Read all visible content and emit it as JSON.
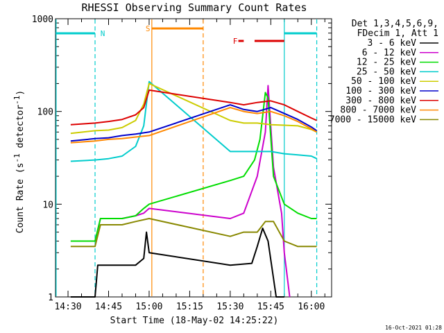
{
  "chart_data": {
    "type": "line",
    "title": "RHESSI Observing Summary Count Rates",
    "xlabel": "Start Time (18-May-02 14:25:22)",
    "ylabel_main": "Count Rate (s",
    "ylabel_sup1": "-1",
    "ylabel_mid": " detector",
    "ylabel_sup2": "-1",
    "ylabel_end": ")",
    "yscale": "log",
    "ylim": [
      1,
      1000
    ],
    "xlim_minutes": [
      25.37,
      127.5
    ],
    "x_tick_labels": [
      "14:30",
      "14:45",
      "15:00",
      "15:15",
      "15:30",
      "15:45",
      "16:00"
    ],
    "x_tick_minutes": [
      30,
      45,
      60,
      75,
      90,
      105,
      120
    ],
    "y_tick_labels": [
      "1",
      "10",
      "100",
      "1000"
    ],
    "y_tick_values": [
      1,
      10,
      100,
      1000
    ],
    "legend_header": [
      "Det 1,3,4,5,6,9,",
      "FDecim 1, Att 1"
    ],
    "series": [
      {
        "name": "3 - 6 keV",
        "color": "#000000",
        "points": [
          [
            31,
            1
          ],
          [
            40,
            1
          ],
          [
            41,
            2.2
          ],
          [
            55,
            2.2
          ],
          [
            58,
            2.6
          ],
          [
            59,
            5
          ],
          [
            60,
            3
          ],
          [
            90,
            2.2
          ],
          [
            98,
            2.3
          ],
          [
            100,
            3.5
          ],
          [
            102,
            5.5
          ],
          [
            104,
            4
          ],
          [
            107,
            1
          ],
          [
            110,
            1
          ]
        ]
      },
      {
        "name": "6 - 12 keV",
        "color": "#cc00cc",
        "points": [
          [
            31,
            4
          ],
          [
            40,
            4
          ],
          [
            42,
            7
          ],
          [
            50,
            7
          ],
          [
            55,
            7.5
          ],
          [
            58,
            8
          ],
          [
            60,
            9
          ],
          [
            90,
            7
          ],
          [
            95,
            8
          ],
          [
            100,
            20
          ],
          [
            103,
            60
          ],
          [
            104,
            190
          ],
          [
            106,
            25
          ],
          [
            109,
            8
          ],
          [
            110,
            3
          ],
          [
            112,
            1
          ]
        ]
      },
      {
        "name": "12 - 25 keV",
        "color": "#00dd00",
        "points": [
          [
            31,
            4
          ],
          [
            40,
            4
          ],
          [
            42,
            7
          ],
          [
            50,
            7
          ],
          [
            55,
            7.5
          ],
          [
            58,
            9
          ],
          [
            60,
            10
          ],
          [
            90,
            18
          ],
          [
            95,
            20
          ],
          [
            99,
            30
          ],
          [
            101,
            50
          ],
          [
            103,
            160
          ],
          [
            104,
            140
          ],
          [
            106,
            20
          ],
          [
            110,
            10
          ],
          [
            115,
            8
          ],
          [
            120,
            7
          ],
          [
            122,
            7
          ]
        ]
      },
      {
        "name": "25 - 50 keV",
        "color": "#00cccc",
        "points": [
          [
            31,
            29
          ],
          [
            40,
            30
          ],
          [
            45,
            31
          ],
          [
            50,
            33
          ],
          [
            55,
            42
          ],
          [
            58,
            70
          ],
          [
            60,
            210
          ],
          [
            90,
            37
          ],
          [
            100,
            37
          ],
          [
            105,
            37
          ],
          [
            110,
            35
          ],
          [
            115,
            34
          ],
          [
            120,
            33
          ],
          [
            122,
            31
          ]
        ]
      },
      {
        "name": "50 - 100 keV",
        "color": "#cccc00",
        "points": [
          [
            31,
            58
          ],
          [
            40,
            62
          ],
          [
            45,
            63
          ],
          [
            50,
            67
          ],
          [
            55,
            80
          ],
          [
            58,
            120
          ],
          [
            60,
            200
          ],
          [
            90,
            80
          ],
          [
            95,
            75
          ],
          [
            100,
            75
          ],
          [
            105,
            72
          ],
          [
            110,
            71
          ],
          [
            115,
            70
          ],
          [
            120,
            64
          ],
          [
            122,
            60
          ]
        ]
      },
      {
        "name": "100 - 300 keV",
        "color": "#0000cc",
        "points": [
          [
            31,
            48
          ],
          [
            40,
            51
          ],
          [
            45,
            52
          ],
          [
            50,
            55
          ],
          [
            55,
            57
          ],
          [
            60,
            60
          ],
          [
            90,
            118
          ],
          [
            95,
            105
          ],
          [
            100,
            100
          ],
          [
            105,
            110
          ],
          [
            110,
            95
          ],
          [
            115,
            82
          ],
          [
            120,
            68
          ],
          [
            122,
            62
          ]
        ]
      },
      {
        "name": "300 - 800 keV",
        "color": "#dd0000",
        "points": [
          [
            31,
            72
          ],
          [
            40,
            75
          ],
          [
            45,
            78
          ],
          [
            50,
            82
          ],
          [
            55,
            92
          ],
          [
            58,
            110
          ],
          [
            60,
            170
          ],
          [
            90,
            125
          ],
          [
            95,
            118
          ],
          [
            100,
            125
          ],
          [
            105,
            130
          ],
          [
            110,
            118
          ],
          [
            115,
            100
          ],
          [
            120,
            85
          ],
          [
            122,
            80
          ]
        ]
      },
      {
        "name": "800 - 7000 keV",
        "color": "#ff8800",
        "points": [
          [
            31,
            46
          ],
          [
            40,
            48
          ],
          [
            45,
            50
          ],
          [
            50,
            51
          ],
          [
            55,
            53
          ],
          [
            60,
            55
          ],
          [
            90,
            110
          ],
          [
            95,
            100
          ],
          [
            100,
            95
          ],
          [
            105,
            100
          ],
          [
            110,
            90
          ],
          [
            115,
            78
          ],
          [
            120,
            65
          ],
          [
            122,
            60
          ]
        ]
      },
      {
        "name": "7000 - 15000 keV",
        "color": "#888800",
        "points": [
          [
            31,
            3.5
          ],
          [
            40,
            3.5
          ],
          [
            42,
            6
          ],
          [
            50,
            6
          ],
          [
            55,
            6.5
          ],
          [
            60,
            7
          ],
          [
            90,
            4.5
          ],
          [
            95,
            5
          ],
          [
            100,
            5
          ],
          [
            103,
            6.5
          ],
          [
            106,
            6.5
          ],
          [
            110,
            4
          ],
          [
            115,
            3.5
          ],
          [
            120,
            3.5
          ],
          [
            122,
            3.5
          ]
        ]
      }
    ],
    "annotations": [
      {
        "label": "N",
        "color": "#00cccc",
        "bars": [
          [
            25.4,
            40
          ],
          [
            110,
            122
          ]
        ]
      },
      {
        "label": "S",
        "color": "#ff8800",
        "bars": [
          [
            61,
            80
          ]
        ]
      },
      {
        "label": "F",
        "color": "#dd0000",
        "bars": [
          [
            93,
            95
          ],
          [
            99,
            110
          ]
        ]
      }
    ],
    "vertical_lines": [
      {
        "x": 25.6,
        "color": "#00cccc",
        "style": "solid"
      },
      {
        "x": 40,
        "color": "#00cccc",
        "style": "dashed"
      },
      {
        "x": 61,
        "color": "#ff8800",
        "style": "solid"
      },
      {
        "x": 80,
        "color": "#ff8800",
        "style": "dashed"
      },
      {
        "x": 110,
        "color": "#00cccc",
        "style": "solid"
      },
      {
        "x": 122,
        "color": "#00cccc",
        "style": "dashed"
      }
    ]
  },
  "footer_date": "16-Oct-2021 01:28"
}
